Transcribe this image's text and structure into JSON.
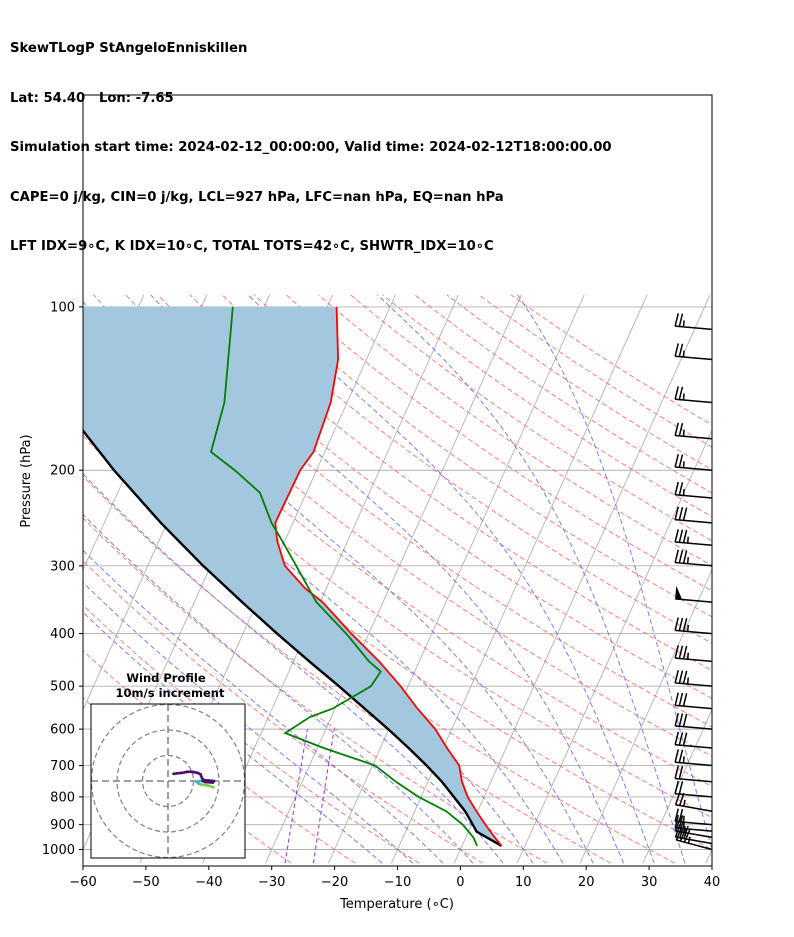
{
  "header": {
    "line1": "SkewTLogP StAngeloEnniskillen",
    "line2": "Lat: 54.40   Lon: -7.65",
    "line3": "Simulation start time: 2024-02-12_00:00:00, Valid time: 2024-02-12T18:00:00.00",
    "line4": "CAPE=0 j/kg, CIN=0 j/kg, LCL=927 hPa, LFC=nan hPa, EQ=nan hPa",
    "line5": "LFT IDX=9∘C, K IDX=10∘C, TOTAL TOTS=42∘C, SHWTR_IDX=10∘C"
  },
  "colors": {
    "temperature": "#ff0000",
    "dewpoint": "#008000",
    "parcel": "#000000",
    "shade": "#a3c7df",
    "dry_adiabat": "#ff6666",
    "moist_adiabat": "#6666ff",
    "mixing_ratio": "#9b30c8",
    "isotherm": "#aaaaaa",
    "hodo_a": "#4b0f6b",
    "hodo_b": "#41b6c4",
    "hodo_c": "#7ad151"
  },
  "chart_data": {
    "type": "skewt",
    "xlabel": "Temperature (∘C)",
    "ylabel": "Pressure (hPa)",
    "xlim": [
      -60,
      40
    ],
    "ylim": [
      1050,
      100
    ],
    "log_y": true,
    "x_ticks": [
      -60,
      -50,
      -40,
      -30,
      -20,
      -10,
      0,
      10,
      20,
      30,
      40
    ],
    "x_tick_labels": [
      "−60",
      "−50",
      "−40",
      "−30",
      "−20",
      "−10",
      "0",
      "10",
      "20",
      "30",
      "40"
    ],
    "y_ticks": [
      1000,
      900,
      800,
      700,
      600,
      500,
      400,
      300,
      200,
      100
    ],
    "grid": true,
    "temperature_profile": [
      {
        "p": 985,
        "t": 6.3
      },
      {
        "p": 950,
        "t": 4.6
      },
      {
        "p": 900,
        "t": 2.2
      },
      {
        "p": 850,
        "t": -0.2
      },
      {
        "p": 800,
        "t": -2.6
      },
      {
        "p": 750,
        "t": -4.6
      },
      {
        "p": 700,
        "t": -6.2
      },
      {
        "p": 650,
        "t": -9.4
      },
      {
        "p": 600,
        "t": -12.6
      },
      {
        "p": 550,
        "t": -16.9
      },
      {
        "p": 500,
        "t": -21.2
      },
      {
        "p": 450,
        "t": -26.4
      },
      {
        "p": 400,
        "t": -32.8
      },
      {
        "p": 350,
        "t": -39.6
      },
      {
        "p": 330,
        "t": -43.4
      },
      {
        "p": 300,
        "t": -48.2
      },
      {
        "p": 270,
        "t": -51.2
      },
      {
        "p": 250,
        "t": -52.8
      },
      {
        "p": 200,
        "t": -52.6
      },
      {
        "p": 185,
        "t": -51.8
      },
      {
        "p": 150,
        "t": -52.6
      },
      {
        "p": 125,
        "t": -54.5
      },
      {
        "p": 100,
        "t": -58.5
      }
    ],
    "dewpoint_profile": [
      {
        "p": 985,
        "t": 2.4
      },
      {
        "p": 950,
        "t": 1.2
      },
      {
        "p": 900,
        "t": -1.4
      },
      {
        "p": 850,
        "t": -5.0
      },
      {
        "p": 800,
        "t": -10.4
      },
      {
        "p": 750,
        "t": -15.1
      },
      {
        "p": 700,
        "t": -19.6
      },
      {
        "p": 650,
        "t": -29.0
      },
      {
        "p": 610,
        "t": -36.2
      },
      {
        "p": 570,
        "t": -33.4
      },
      {
        "p": 550,
        "t": -30.4
      },
      {
        "p": 500,
        "t": -25.9
      },
      {
        "p": 470,
        "t": -25.4
      },
      {
        "p": 450,
        "t": -28.0
      },
      {
        "p": 400,
        "t": -33.6
      },
      {
        "p": 350,
        "t": -40.6
      },
      {
        "p": 300,
        "t": -46.4
      },
      {
        "p": 270,
        "t": -50.4
      },
      {
        "p": 250,
        "t": -53.4
      },
      {
        "p": 220,
        "t": -57.4
      },
      {
        "p": 200,
        "t": -63.0
      },
      {
        "p": 185,
        "t": -68.1
      },
      {
        "p": 150,
        "t": -69.5
      },
      {
        "p": 100,
        "t": -75.0
      }
    ],
    "parcel_profile": [
      {
        "p": 985,
        "t": 6.3
      },
      {
        "p": 927,
        "t": 1.3
      },
      {
        "p": 900,
        "t": 0.2
      },
      {
        "p": 850,
        "t": -2.0
      },
      {
        "p": 800,
        "t": -4.8
      },
      {
        "p": 750,
        "t": -7.8
      },
      {
        "p": 700,
        "t": -11.4
      },
      {
        "p": 650,
        "t": -15.5
      },
      {
        "p": 600,
        "t": -20.1
      },
      {
        "p": 550,
        "t": -25.3
      },
      {
        "p": 500,
        "t": -31.0
      },
      {
        "p": 450,
        "t": -37.5
      },
      {
        "p": 400,
        "t": -44.6
      },
      {
        "p": 350,
        "t": -52.4
      },
      {
        "p": 300,
        "t": -61.2
      },
      {
        "p": 250,
        "t": -71.0
      },
      {
        "p": 200,
        "t": -82.2
      },
      {
        "p": 150,
        "t": -95.5
      },
      {
        "p": 100,
        "t": -111.8
      }
    ],
    "wind_barbs": [
      {
        "p": 1000,
        "speed_kt": 35,
        "direction": 285
      },
      {
        "p": 975,
        "speed_kt": 30,
        "direction": 280
      },
      {
        "p": 950,
        "speed_kt": 25,
        "direction": 280
      },
      {
        "p": 925,
        "speed_kt": 25,
        "direction": 275
      },
      {
        "p": 900,
        "speed_kt": 25,
        "direction": 275
      },
      {
        "p": 850,
        "speed_kt": 25,
        "direction": 280
      },
      {
        "p": 800,
        "speed_kt": 20,
        "direction": 275
      },
      {
        "p": 750,
        "speed_kt": 20,
        "direction": 275
      },
      {
        "p": 700,
        "speed_kt": 25,
        "direction": 275
      },
      {
        "p": 650,
        "speed_kt": 30,
        "direction": 275
      },
      {
        "p": 600,
        "speed_kt": 30,
        "direction": 275
      },
      {
        "p": 550,
        "speed_kt": 30,
        "direction": 275
      },
      {
        "p": 500,
        "speed_kt": 35,
        "direction": 275
      },
      {
        "p": 450,
        "speed_kt": 35,
        "direction": 275
      },
      {
        "p": 400,
        "speed_kt": 35,
        "direction": 275
      },
      {
        "p": 350,
        "speed_kt": 50,
        "direction": 275
      },
      {
        "p": 300,
        "speed_kt": 35,
        "direction": 275
      },
      {
        "p": 275,
        "speed_kt": 35,
        "direction": 275
      },
      {
        "p": 250,
        "speed_kt": 30,
        "direction": 275
      },
      {
        "p": 225,
        "speed_kt": 25,
        "direction": 275
      },
      {
        "p": 200,
        "speed_kt": 25,
        "direction": 275
      },
      {
        "p": 175,
        "speed_kt": 25,
        "direction": 275
      },
      {
        "p": 150,
        "speed_kt": 25,
        "direction": 275
      },
      {
        "p": 125,
        "speed_kt": 25,
        "direction": 275
      },
      {
        "p": 110,
        "speed_kt": 25,
        "direction": 275
      }
    ],
    "hodograph": {
      "title": "Wind Profile",
      "subtitle": "10m/s increment",
      "ring_spacing_ms": 10,
      "rings": 3,
      "points": [
        {
          "u": 17.8,
          "v": -2.4,
          "color": "c"
        },
        {
          "u": 15.8,
          "v": -1.8,
          "color": "c"
        },
        {
          "u": 13.0,
          "v": -1.4,
          "color": "c"
        },
        {
          "u": 12.0,
          "v": -1.0,
          "color": "b"
        },
        {
          "u": 11.2,
          "v": -0.4,
          "color": "b"
        },
        {
          "u": 12.4,
          "v": 0.0,
          "color": "b"
        },
        {
          "u": 13.6,
          "v": 0.0,
          "color": "a"
        },
        {
          "u": 14.6,
          "v": -0.4,
          "color": "a"
        },
        {
          "u": 17.6,
          "v": -0.6,
          "color": "a"
        },
        {
          "u": 18.0,
          "v": 0.0,
          "color": "a"
        },
        {
          "u": 16.0,
          "v": 0.2,
          "color": "a"
        },
        {
          "u": 14.2,
          "v": 0.3,
          "color": "a"
        },
        {
          "u": 13.4,
          "v": 1.0,
          "color": "a"
        },
        {
          "u": 12.8,
          "v": 2.6,
          "color": "a"
        },
        {
          "u": 11.6,
          "v": 3.2,
          "color": "a"
        },
        {
          "u": 9.6,
          "v": 3.6,
          "color": "a"
        },
        {
          "u": 7.4,
          "v": 3.6,
          "color": "a"
        },
        {
          "u": 5.6,
          "v": 3.2,
          "color": "a"
        },
        {
          "u": 3.6,
          "v": 3.0,
          "color": "a"
        },
        {
          "u": 2.2,
          "v": 2.8,
          "color": "a"
        }
      ]
    }
  }
}
